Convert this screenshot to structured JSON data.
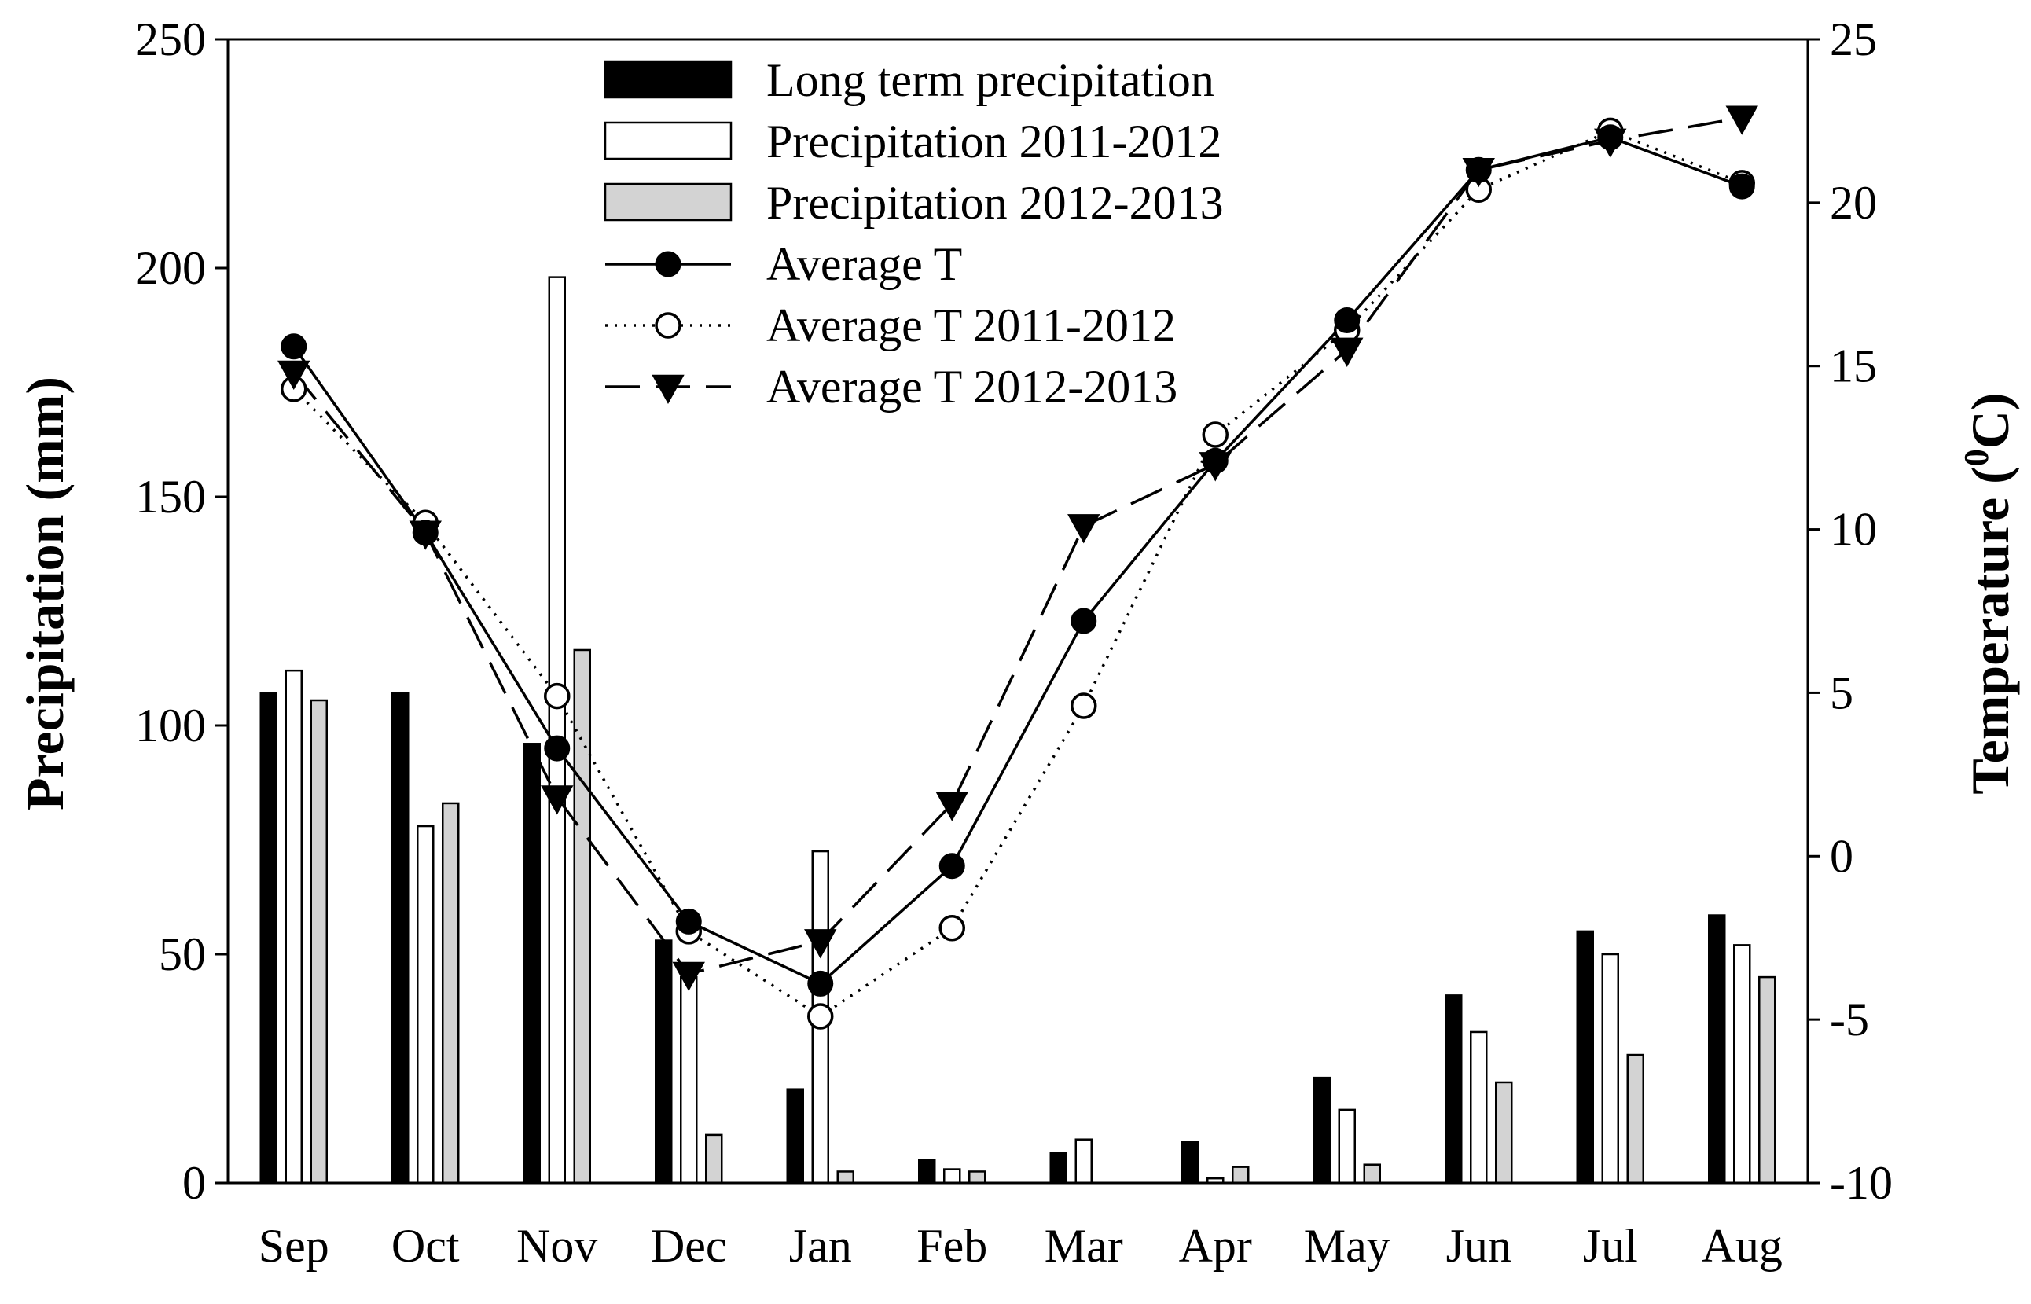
{
  "chart_data": {
    "type": "bar+line",
    "categories": [
      "Sep",
      "Oct",
      "Nov",
      "Dec",
      "Jan",
      "Feb",
      "Mar",
      "Apr",
      "May",
      "Jun",
      "Jul",
      "Aug"
    ],
    "ylabel": "Precipitation (mm)",
    "y2label_main": "Temperature (",
    "y2label_sup": "0",
    "y2label_unit": "C)",
    "ylim": [
      0,
      250
    ],
    "y2lim": [
      -10,
      25
    ],
    "yticks": [
      "0",
      "50",
      "100",
      "150",
      "200",
      "250"
    ],
    "y2ticks": [
      "-10",
      "-5",
      "0",
      "5",
      "10",
      "15",
      "20",
      "25"
    ],
    "bar_series": [
      {
        "name": "Long term precipitation",
        "color": "#000000",
        "values": [
          107,
          107,
          96,
          53,
          20.5,
          5,
          6.5,
          9,
          23,
          41,
          55,
          58.5
        ]
      },
      {
        "name": "Precipitation 2011-2012",
        "color": "#ffffff",
        "values": [
          112,
          78,
          198,
          45,
          72.5,
          3,
          9.5,
          1,
          16,
          33,
          50,
          52
        ]
      },
      {
        "name": "Precipitation 2012-2013",
        "color": "#d3d3d3",
        "values": [
          105.5,
          83,
          116.5,
          10.5,
          2.5,
          2.5,
          0,
          3.5,
          4,
          22,
          28,
          45
        ]
      }
    ],
    "line_series": [
      {
        "name": "Average T",
        "style": "solid",
        "marker": "filled-circle",
        "values": [
          15.6,
          9.9,
          3.3,
          -2,
          -3.9,
          -0.3,
          7.2,
          12.1,
          16.4,
          21,
          22,
          20.5
        ]
      },
      {
        "name": "Average T 2011-2012",
        "style": "dotted",
        "marker": "open-circle",
        "values": [
          14.3,
          10.2,
          4.9,
          -2.3,
          -4.9,
          -2.2,
          4.6,
          12.9,
          16.1,
          20.4,
          22.2,
          20.6
        ]
      },
      {
        "name": "Average T 2012-2013",
        "style": "dashed",
        "marker": "filled-triangle-down",
        "values": [
          14.8,
          9.9,
          1.8,
          -3.6,
          -2.6,
          1.6,
          10.1,
          12,
          15.5,
          21,
          21.9,
          22.6
        ]
      }
    ]
  }
}
